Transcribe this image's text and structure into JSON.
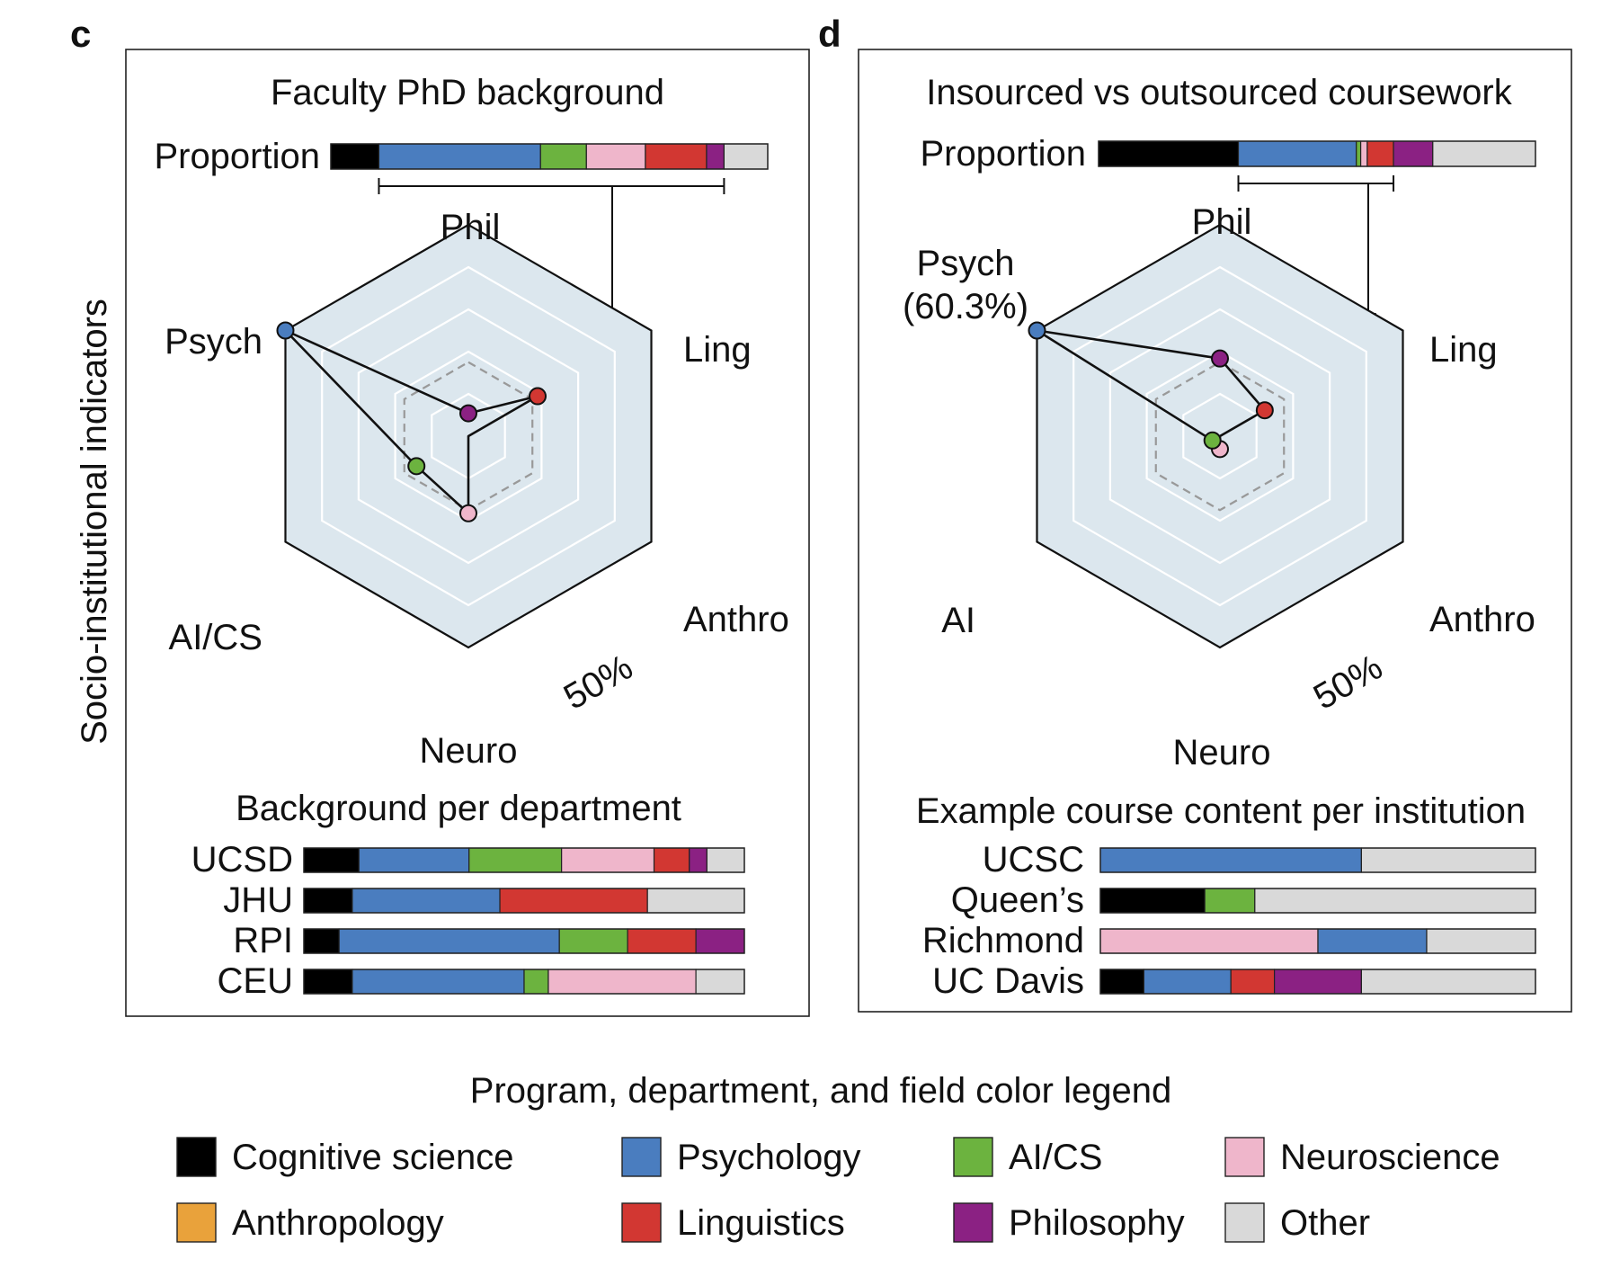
{
  "y_axis_label": "Socio-institutional indicators",
  "legend": {
    "title": "Program, department, and field color legend",
    "items": [
      {
        "label": "Cognitive science",
        "color": "#000000"
      },
      {
        "label": "Psychology",
        "color": "#4a7dbf"
      },
      {
        "label": "AI/CS",
        "color": "#6cb33f"
      },
      {
        "label": "Neuroscience",
        "color": "#efb6cb"
      },
      {
        "label": "Anthropology",
        "color": "#e9a23b"
      },
      {
        "label": "Linguistics",
        "color": "#d23732"
      },
      {
        "label": "Philosophy",
        "color": "#8b2183"
      },
      {
        "label": "Other",
        "color": "#d9d9d9"
      }
    ]
  },
  "chart_data": [
    {
      "panel": "c",
      "type": "radar",
      "title": "Faculty PhD background",
      "proportion_label": "Proportion",
      "proportion": [
        {
          "field": "Cognitive science",
          "value": 0.11
        },
        {
          "field": "Psychology",
          "value": 0.37
        },
        {
          "field": "AI/CS",
          "value": 0.105
        },
        {
          "field": "Neuroscience",
          "value": 0.135
        },
        {
          "field": "Linguistics",
          "value": 0.14
        },
        {
          "field": "Philosophy",
          "value": 0.04
        },
        {
          "field": "Other",
          "value": 0.1
        }
      ],
      "axes": [
        "Phil",
        "Ling",
        "Anthro",
        "Neuro",
        "AI/CS",
        "Psych"
      ],
      "values": [
        0.04,
        0.14,
        0.0,
        0.135,
        0.105,
        0.37
      ],
      "colors": [
        "#8b2183",
        "#d23732",
        "#e9a23b",
        "#efb6cb",
        "#6cb33f",
        "#4a7dbf"
      ],
      "ring_label": "50%",
      "ring_value": 0.5,
      "rmax": 0.37,
      "reference": 0.1667,
      "sub_title": "Background per department",
      "rows": [
        {
          "name": "UCSD",
          "segments": [
            {
              "field": "Cognitive science",
              "value": 0.125
            },
            {
              "field": "Psychology",
              "value": 0.25
            },
            {
              "field": "AI/CS",
              "value": 0.21
            },
            {
              "field": "Neuroscience",
              "value": 0.21
            },
            {
              "field": "Linguistics",
              "value": 0.08
            },
            {
              "field": "Philosophy",
              "value": 0.04
            },
            {
              "field": "Other",
              "value": 0.085
            }
          ]
        },
        {
          "name": "JHU",
          "segments": [
            {
              "field": "Cognitive science",
              "value": 0.11
            },
            {
              "field": "Psychology",
              "value": 0.335
            },
            {
              "field": "Linguistics",
              "value": 0.335
            },
            {
              "field": "Other",
              "value": 0.22
            }
          ]
        },
        {
          "name": "RPI",
          "segments": [
            {
              "field": "Cognitive science",
              "value": 0.08
            },
            {
              "field": "Psychology",
              "value": 0.5
            },
            {
              "field": "AI/CS",
              "value": 0.155
            },
            {
              "field": "Linguistics",
              "value": 0.155
            },
            {
              "field": "Philosophy",
              "value": 0.11
            }
          ]
        },
        {
          "name": "CEU",
          "segments": [
            {
              "field": "Cognitive science",
              "value": 0.11
            },
            {
              "field": "Psychology",
              "value": 0.39
            },
            {
              "field": "AI/CS",
              "value": 0.055
            },
            {
              "field": "Neuroscience",
              "value": 0.335
            },
            {
              "field": "Other",
              "value": 0.11
            }
          ]
        }
      ]
    },
    {
      "panel": "d",
      "type": "radar",
      "title": "Insourced vs outsourced coursework",
      "proportion_label": "Proportion",
      "proportion": [
        {
          "field": "Cognitive science",
          "value": 0.32
        },
        {
          "field": "Psychology",
          "value": 0.27
        },
        {
          "field": "AI/CS",
          "value": 0.01
        },
        {
          "field": "Neuroscience",
          "value": 0.015
        },
        {
          "field": "Linguistics",
          "value": 0.06
        },
        {
          "field": "Philosophy",
          "value": 0.09
        },
        {
          "field": "Other",
          "value": 0.235
        }
      ],
      "axes": [
        "Phil",
        "Ling",
        "Anthro",
        "Neuro",
        "AI",
        "Psych"
      ],
      "values": [
        0.09,
        0.06,
        0.0,
        0.015,
        0.01,
        0.27
      ],
      "colors": [
        "#8b2183",
        "#d23732",
        "#e9a23b",
        "#efb6cb",
        "#6cb33f",
        "#4a7dbf"
      ],
      "highlight_label": "Psych",
      "highlight_value": "(60.3%)",
      "ring_label": "50%",
      "ring_value": 0.5,
      "rmax": 0.245,
      "reference": 0.1667,
      "sub_title": "Example course content per institution",
      "rows": [
        {
          "name": "UCSC",
          "segments": [
            {
              "field": "Psychology",
              "value": 0.6
            },
            {
              "field": "Other",
              "value": 0.4
            }
          ]
        },
        {
          "name": "Queen’s",
          "segments": [
            {
              "field": "Cognitive science",
              "value": 0.24
            },
            {
              "field": "AI/CS",
              "value": 0.115
            },
            {
              "field": "Other",
              "value": 0.645
            }
          ]
        },
        {
          "name": "Richmond",
          "segments": [
            {
              "field": "Neuroscience",
              "value": 0.5
            },
            {
              "field": "Psychology",
              "value": 0.25
            },
            {
              "field": "Other",
              "value": 0.25
            }
          ]
        },
        {
          "name": "UC Davis",
          "segments": [
            {
              "field": "Cognitive science",
              "value": 0.1
            },
            {
              "field": "Psychology",
              "value": 0.2
            },
            {
              "field": "Linguistics",
              "value": 0.1
            },
            {
              "field": "Philosophy",
              "value": 0.2
            },
            {
              "field": "Other",
              "value": 0.4
            }
          ]
        }
      ]
    }
  ]
}
